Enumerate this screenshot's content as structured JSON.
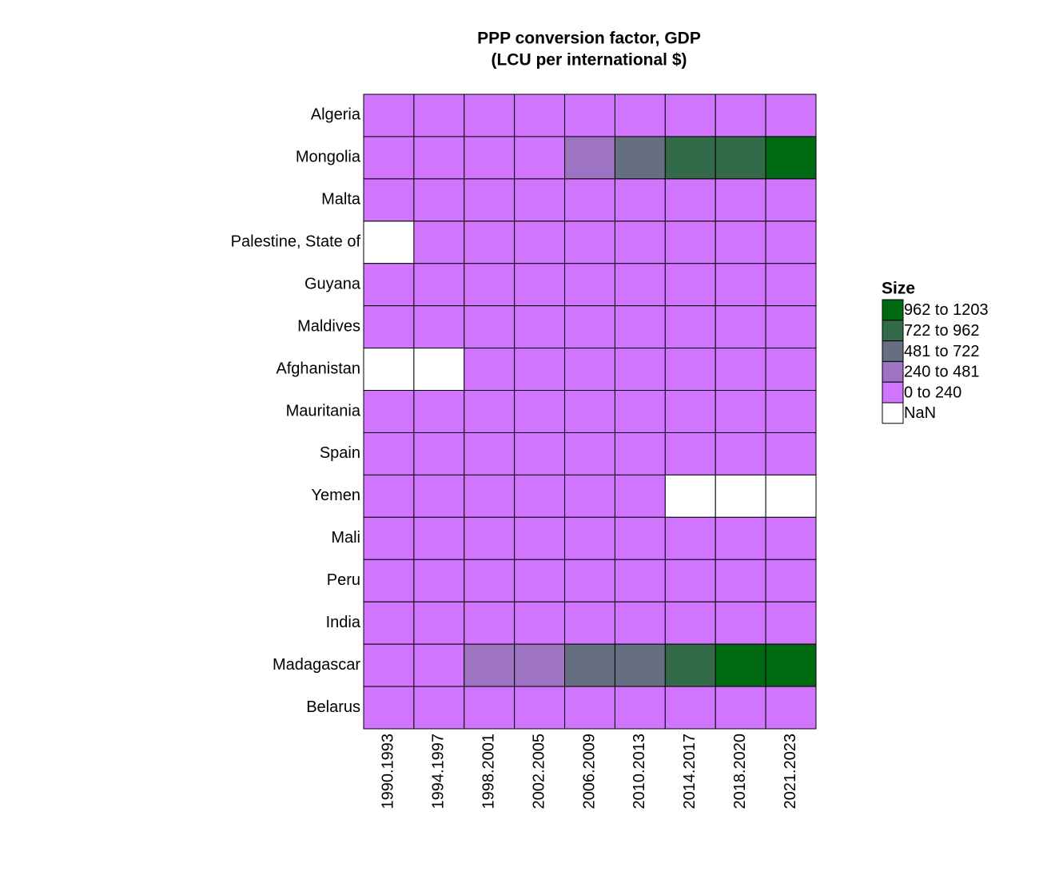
{
  "chart_data": {
    "type": "heatmap",
    "title": [
      "PPP conversion factor, GDP",
      "(LCU per international $)"
    ],
    "rows": [
      "Algeria",
      "Mongolia",
      "Malta",
      "Palestine, State of",
      "Guyana",
      "Maldives",
      "Afghanistan",
      "Mauritania",
      "Spain",
      "Yemen",
      "Mali",
      "Peru",
      "India",
      "Madagascar",
      "Belarus"
    ],
    "columns": [
      "1990.1993",
      "1994.1997",
      "1998.2001",
      "2002.2005",
      "2006.2009",
      "2010.2013",
      "2014.2017",
      "2018.2020",
      "2021.2023"
    ],
    "values": [
      [
        6,
        14,
        20,
        24,
        28,
        32,
        38,
        42,
        48
      ],
      [
        30,
        110,
        180,
        220,
        400,
        560,
        850,
        900,
        1100
      ],
      [
        0.4,
        0.4,
        0.4,
        0.5,
        0.6,
        0.6,
        0.6,
        0.6,
        0.6
      ],
      [
        null,
        2.1,
        2.3,
        2.4,
        2.5,
        2.6,
        2.7,
        2.8,
        2.9
      ],
      [
        20,
        60,
        70,
        80,
        95,
        100,
        105,
        110,
        115
      ],
      [
        7,
        7.5,
        8,
        8.2,
        8.5,
        8.8,
        9,
        9.2,
        9.4
      ],
      [
        null,
        null,
        10,
        12,
        14,
        16,
        18,
        20,
        22
      ],
      [
        5,
        7,
        8,
        9,
        10,
        11,
        12,
        13,
        14
      ],
      [
        0.6,
        0.62,
        0.64,
        0.66,
        0.68,
        0.66,
        0.64,
        0.63,
        0.62
      ],
      [
        10,
        30,
        50,
        60,
        80,
        110,
        null,
        null,
        null
      ],
      [
        190,
        210,
        215,
        220,
        225,
        220,
        215,
        210,
        205
      ],
      [
        1,
        1.3,
        1.4,
        1.5,
        1.5,
        1.5,
        1.6,
        1.7,
        1.8
      ],
      [
        6,
        8,
        9,
        10,
        12,
        15,
        18,
        20,
        22
      ],
      [
        60,
        180,
        300,
        400,
        550,
        650,
        800,
        1000,
        1150
      ],
      [
        0.1,
        0.2,
        0.3,
        0.4,
        0.5,
        0.6,
        0.7,
        0.8,
        0.9
      ]
    ],
    "legend_title": "Size",
    "color_bins": [
      {
        "label": "962 to 1203",
        "from": 962,
        "to": 1203,
        "color": "#006a12"
      },
      {
        "label": "722 to 962",
        "from": 722,
        "to": 962,
        "color": "#336b4a"
      },
      {
        "label": "481 to 722",
        "from": 481,
        "to": 722,
        "color": "#666f82"
      },
      {
        "label": "240 to 481",
        "from": 240,
        "to": 481,
        "color": "#9d73c2"
      },
      {
        "label": "0 to 240",
        "from": 0,
        "to": 240,
        "color": "#d175ff"
      }
    ],
    "nan": {
      "label": "NaN",
      "color": "#ffffff"
    }
  }
}
